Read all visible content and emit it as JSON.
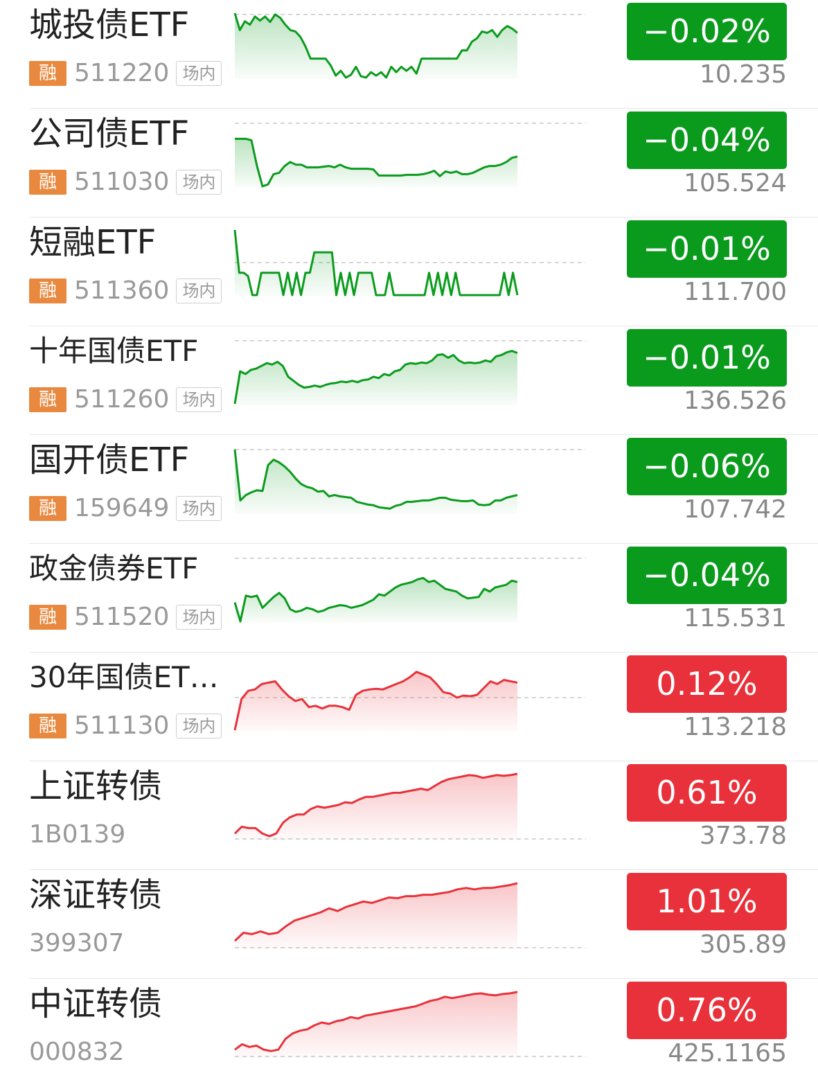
{
  "colors": {
    "down": "#0a9b1d",
    "up": "#e8313a",
    "badge_rong": "#e8893f",
    "muted_text": "#999999"
  },
  "rows": [
    {
      "name": "城投债ETF",
      "rong": "融",
      "code": "511220",
      "market": "场内",
      "change": "−0.02%",
      "price": "10.235",
      "direction": "down",
      "trend": [
        0.97,
        0.72,
        0.85,
        0.8,
        0.92,
        0.86,
        0.92,
        0.84,
        0.95,
        0.9,
        0.8,
        0.72,
        0.7,
        0.62,
        0.48,
        0.3,
        0.3,
        0.3,
        0.3,
        0.2,
        0.05,
        0.12,
        0.02,
        0.06,
        0.18,
        0.04,
        0.02,
        0.1,
        0.05,
        0.1,
        0.02,
        0.18,
        0.1,
        0.18,
        0.12,
        0.18,
        0.08,
        0.3,
        0.3,
        0.3,
        0.3,
        0.3,
        0.3,
        0.3,
        0.3,
        0.42,
        0.42,
        0.55,
        0.6,
        0.7,
        0.68,
        0.72,
        0.62,
        0.72,
        0.78,
        0.74,
        0.68
      ],
      "trend_baseline": 0.95
    },
    {
      "name": "公司债ETF",
      "rong": "融",
      "code": "511030",
      "market": "场内",
      "change": "−0.04%",
      "price": "105.524",
      "direction": "down",
      "trend": [
        0.72,
        0.72,
        0.72,
        0.7,
        0.32,
        0.02,
        0.05,
        0.2,
        0.22,
        0.32,
        0.38,
        0.34,
        0.34,
        0.3,
        0.3,
        0.3,
        0.31,
        0.32,
        0.3,
        0.34,
        0.3,
        0.28,
        0.28,
        0.28,
        0.28,
        0.27,
        0.18,
        0.18,
        0.18,
        0.18,
        0.18,
        0.19,
        0.19,
        0.19,
        0.2,
        0.22,
        0.25,
        0.17,
        0.24,
        0.22,
        0.24,
        0.2,
        0.2,
        0.22,
        0.26,
        0.3,
        0.32,
        0.32,
        0.34,
        0.38,
        0.44,
        0.46
      ],
      "trend_baseline": 0.95
    },
    {
      "name": "短融ETF",
      "rong": "融",
      "code": "511360",
      "market": "场内",
      "change": "−0.01%",
      "price": "111.700",
      "direction": "down",
      "trend": [
        0.98,
        0.35,
        0.35,
        0.3,
        0.02,
        0.02,
        0.35,
        0.35,
        0.35,
        0.35,
        0.35,
        0.02,
        0.35,
        0.02,
        0.35,
        0.02,
        0.35,
        0.35,
        0.65,
        0.65,
        0.65,
        0.65,
        0.65,
        0.02,
        0.35,
        0.02,
        0.35,
        0.02,
        0.35,
        0.35,
        0.35,
        0.35,
        0.02,
        0.02,
        0.02,
        0.35,
        0.02,
        0.02,
        0.02,
        0.02,
        0.02,
        0.02,
        0.02,
        0.02,
        0.35,
        0.02,
        0.35,
        0.02,
        0.35,
        0.02,
        0.35,
        0.02,
        0.02,
        0.02,
        0.02,
        0.02,
        0.02,
        0.02,
        0.02,
        0.02,
        0.02,
        0.35,
        0.02,
        0.35,
        0.02
      ],
      "trend_baseline": 0.5
    },
    {
      "name": "十年国债ETF",
      "rong": "融",
      "code": "511260",
      "market": "场内",
      "change": "−0.01%",
      "price": "136.526",
      "direction": "down",
      "trend": [
        0.02,
        0.5,
        0.46,
        0.52,
        0.54,
        0.58,
        0.62,
        0.6,
        0.64,
        0.58,
        0.42,
        0.36,
        0.3,
        0.26,
        0.27,
        0.29,
        0.27,
        0.3,
        0.32,
        0.33,
        0.35,
        0.34,
        0.36,
        0.34,
        0.37,
        0.38,
        0.42,
        0.4,
        0.46,
        0.44,
        0.5,
        0.52,
        0.6,
        0.62,
        0.61,
        0.63,
        0.62,
        0.66,
        0.74,
        0.75,
        0.7,
        0.74,
        0.66,
        0.62,
        0.63,
        0.62,
        0.63,
        0.66,
        0.64,
        0.72,
        0.74,
        0.78,
        0.8,
        0.77
      ],
      "trend_baseline": 0.95
    },
    {
      "name": "国开债ETF",
      "rong": "融",
      "code": "159649",
      "market": "场内",
      "change": "−0.06%",
      "price": "107.742",
      "direction": "down",
      "trend": [
        0.95,
        0.2,
        0.28,
        0.32,
        0.35,
        0.34,
        0.72,
        0.8,
        0.76,
        0.7,
        0.62,
        0.52,
        0.44,
        0.4,
        0.38,
        0.33,
        0.34,
        0.26,
        0.28,
        0.26,
        0.25,
        0.24,
        0.18,
        0.16,
        0.14,
        0.13,
        0.1,
        0.09,
        0.08,
        0.12,
        0.14,
        0.18,
        0.18,
        0.19,
        0.2,
        0.2,
        0.22,
        0.24,
        0.24,
        0.21,
        0.2,
        0.19,
        0.19,
        0.2,
        0.14,
        0.13,
        0.14,
        0.2,
        0.2,
        0.24,
        0.26,
        0.28
      ],
      "trend_baseline": 0.95
    },
    {
      "name": "政金债券ETF",
      "rong": "融",
      "code": "511520",
      "market": "场内",
      "change": "−0.04%",
      "price": "115.531",
      "direction": "down",
      "trend": [
        0.3,
        0.02,
        0.4,
        0.38,
        0.4,
        0.22,
        0.3,
        0.38,
        0.44,
        0.36,
        0.2,
        0.16,
        0.18,
        0.22,
        0.2,
        0.16,
        0.18,
        0.22,
        0.24,
        0.26,
        0.25,
        0.22,
        0.24,
        0.26,
        0.3,
        0.34,
        0.42,
        0.4,
        0.46,
        0.52,
        0.56,
        0.58,
        0.6,
        0.64,
        0.66,
        0.6,
        0.62,
        0.56,
        0.5,
        0.48,
        0.46,
        0.4,
        0.36,
        0.37,
        0.38,
        0.5,
        0.46,
        0.52,
        0.54,
        0.56,
        0.62,
        0.6
      ],
      "trend_baseline": 0.95
    },
    {
      "name": "30年国债ET…",
      "rong": "融",
      "code": "511130",
      "market": "场内",
      "change": "0.12%",
      "price": "113.218",
      "direction": "up",
      "trend": [
        0.02,
        0.48,
        0.6,
        0.62,
        0.7,
        0.72,
        0.74,
        0.62,
        0.52,
        0.45,
        0.48,
        0.36,
        0.38,
        0.34,
        0.38,
        0.38,
        0.36,
        0.32,
        0.54,
        0.6,
        0.62,
        0.63,
        0.62,
        0.66,
        0.7,
        0.74,
        0.8,
        0.88,
        0.84,
        0.8,
        0.7,
        0.58,
        0.56,
        0.5,
        0.53,
        0.52,
        0.54,
        0.64,
        0.74,
        0.7,
        0.76,
        0.74,
        0.72
      ],
      "trend_baseline": 0.5
    },
    {
      "name": "上证转债",
      "rong": "",
      "code": "1B0139",
      "market": "",
      "change": "0.61%",
      "price": "373.78",
      "direction": "up",
      "trend": [
        0.1,
        0.2,
        0.18,
        0.18,
        0.1,
        0.06,
        0.1,
        0.26,
        0.34,
        0.38,
        0.38,
        0.46,
        0.5,
        0.48,
        0.5,
        0.52,
        0.56,
        0.55,
        0.6,
        0.64,
        0.64,
        0.66,
        0.68,
        0.7,
        0.7,
        0.72,
        0.74,
        0.76,
        0.74,
        0.8,
        0.86,
        0.9,
        0.92,
        0.94,
        0.96,
        0.95,
        0.92,
        0.94,
        0.96,
        0.95,
        0.96,
        0.98
      ],
      "trend_baseline": 0.02
    },
    {
      "name": "深证转债",
      "rong": "",
      "code": "399307",
      "market": "",
      "change": "1.01%",
      "price": "305.89",
      "direction": "up",
      "trend": [
        0.12,
        0.24,
        0.22,
        0.26,
        0.22,
        0.24,
        0.34,
        0.42,
        0.46,
        0.5,
        0.54,
        0.6,
        0.56,
        0.62,
        0.66,
        0.7,
        0.68,
        0.72,
        0.76,
        0.75,
        0.78,
        0.78,
        0.8,
        0.8,
        0.82,
        0.84,
        0.88,
        0.9,
        0.88,
        0.9,
        0.9,
        0.92,
        0.94,
        0.97
      ],
      "trend_baseline": 0.02
    },
    {
      "name": "中证转债",
      "rong": "",
      "code": "000832",
      "market": "",
      "change": "0.76%",
      "price": "425.1165",
      "direction": "up",
      "trend": [
        0.12,
        0.2,
        0.16,
        0.18,
        0.12,
        0.1,
        0.12,
        0.28,
        0.36,
        0.4,
        0.42,
        0.48,
        0.52,
        0.5,
        0.54,
        0.56,
        0.6,
        0.58,
        0.62,
        0.64,
        0.66,
        0.68,
        0.7,
        0.72,
        0.74,
        0.76,
        0.8,
        0.84,
        0.86,
        0.9,
        0.88,
        0.9,
        0.92,
        0.94,
        0.95,
        0.93,
        0.92,
        0.94,
        0.95,
        0.97
      ],
      "trend_baseline": 0.02
    }
  ]
}
